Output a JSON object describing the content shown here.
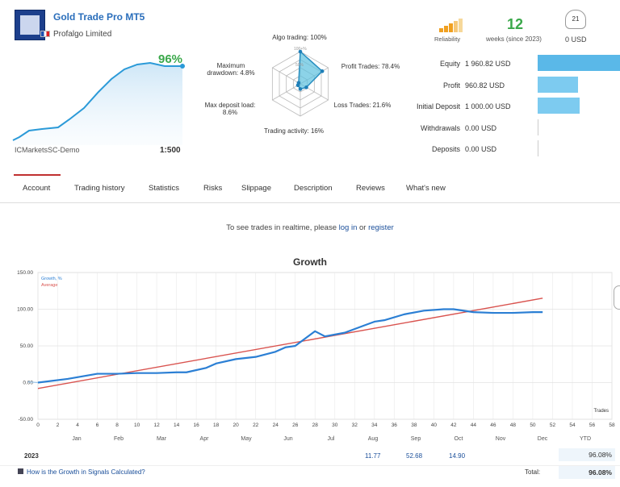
{
  "header": {
    "title": "Gold Trade Pro MT5",
    "company": "Profalgo Limited",
    "growth_pct": "96%",
    "account": "ICMarketsSC-Demo",
    "leverage": "1:500",
    "reliability_label": "Reliability",
    "weeks": "12",
    "weeks_label": "weeks (since 2023)",
    "subscribers": "21",
    "price": "0 USD"
  },
  "radar": {
    "algo": "Algo trading: 100%",
    "profit_trades": "Profit Trades: 78.4%",
    "loss_trades": "Loss Trades: 21.6%",
    "activity": "Trading activity: 16%",
    "max_deposit_load": "Max deposit load:",
    "max_deposit_load_val": "8.6%",
    "max_drawdown": "Maximum",
    "max_drawdown_2": "drawdown: 4.8%",
    "ring_100": "100+%",
    "ring_50": "50%",
    "values": {
      "algo": 100,
      "profit_trades": 78.4,
      "loss_trades": 21.6,
      "activity": 16,
      "max_deposit_load": 8.6,
      "max_drawdown": 4.8
    }
  },
  "stats": [
    {
      "label": "Equity",
      "value": "1 960.82 USD",
      "bar": 1.0
    },
    {
      "label": "Profit",
      "value": "960.82 USD",
      "bar": 0.49
    },
    {
      "label": "Initial Deposit",
      "value": "1 000.00 USD",
      "bar": 0.51
    },
    {
      "label": "Withdrawals",
      "value": "0.00 USD",
      "bar": 0
    },
    {
      "label": "Deposits",
      "value": "0.00 USD",
      "bar": 0
    }
  ],
  "tabs": [
    "Account",
    "Trading history",
    "Statistics",
    "Risks",
    "Slippage",
    "Description",
    "Reviews",
    "What's new"
  ],
  "realtime": {
    "prefix": "To see trades in realtime, please",
    "login": "log in",
    "or": "or",
    "register": "register"
  },
  "chart_data": {
    "type": "line",
    "title": "Growth",
    "legend": [
      "Growth, %",
      "Average"
    ],
    "xlabel": "Trades",
    "ylim": [
      -50,
      150
    ],
    "yticks": [
      "150.00",
      "100.00",
      "50.00",
      "0.00",
      "-50.00"
    ],
    "xticks": [
      "0",
      "2",
      "4",
      "6",
      "8",
      "10",
      "12",
      "14",
      "16",
      "18",
      "20",
      "22",
      "24",
      "26",
      "28",
      "30",
      "32",
      "34",
      "36",
      "38",
      "40",
      "42",
      "44",
      "46",
      "48",
      "50",
      "52",
      "54",
      "56",
      "58"
    ],
    "months": [
      "Jan",
      "Feb",
      "Mar",
      "Apr",
      "May",
      "Jun",
      "Jul",
      "Aug",
      "Sep",
      "Oct",
      "Nov",
      "Dec"
    ],
    "series": [
      {
        "name": "Growth, %",
        "color": "#2b7fd4",
        "x": [
          0,
          3,
          6,
          8,
          10,
          12,
          14,
          15,
          17,
          18,
          20,
          22,
          24,
          25,
          26,
          28,
          29,
          31,
          33,
          34,
          35,
          37,
          39,
          41,
          42,
          44,
          46,
          48,
          50,
          51
        ],
        "y": [
          0,
          5,
          12,
          12,
          13,
          13,
          14,
          14,
          20,
          26,
          32,
          35,
          42,
          48,
          50,
          70,
          63,
          68,
          78,
          83,
          85,
          93,
          98,
          100,
          100,
          96,
          95,
          95,
          96,
          96
        ]
      },
      {
        "name": "Average",
        "color": "#d9534f",
        "x": [
          0,
          51
        ],
        "y": [
          -8,
          115
        ]
      }
    ],
    "pre_start": {
      "x": [
        -1,
        0
      ],
      "y": [
        1,
        0
      ]
    }
  },
  "table": {
    "year": "2023",
    "aug": "11.77",
    "sep": "52.68",
    "oct": "14.90",
    "ytd_label": "YTD",
    "ytd": "96.08%",
    "total_label": "Total:",
    "total": "96.08%",
    "calc_link": "How is the Growth in Signals Calculated?"
  }
}
